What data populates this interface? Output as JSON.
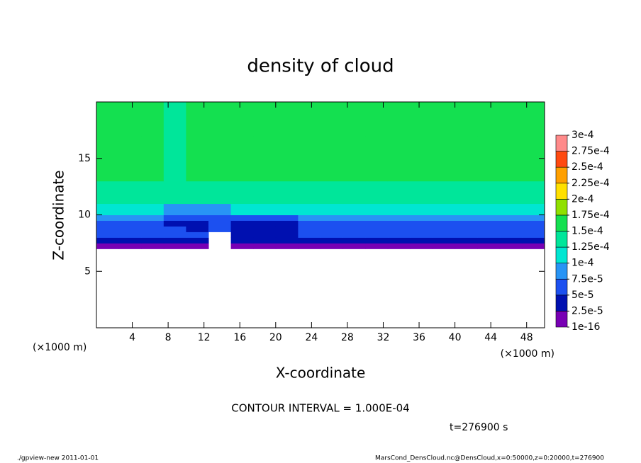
{
  "chart_data": {
    "type": "heatmap",
    "title": "density of cloud",
    "x_label": "X-coordinate",
    "y_label": "Z-coordinate",
    "x_unit_left": "(×1000 m)",
    "x_unit_right": "(×1000 m)",
    "xlim": [
      0,
      50
    ],
    "ylim": [
      0,
      20
    ],
    "xticks": [
      4,
      8,
      12,
      16,
      20,
      24,
      28,
      32,
      36,
      40,
      44,
      48
    ],
    "yticks": [
      5,
      10,
      15
    ],
    "x_edges": [
      0,
      2.5,
      5,
      7.5,
      10,
      12.5,
      15,
      17.5,
      20,
      22.5,
      25,
      27.5,
      30,
      32.5,
      35,
      37.5,
      40,
      42.5,
      45,
      47.5,
      50
    ],
    "z_edges": [
      7,
      7.5,
      8,
      8.5,
      9,
      9.5,
      10,
      11,
      13,
      15,
      17,
      20
    ],
    "grid": [
      [
        1e-05,
        1e-05,
        1e-05,
        1e-05,
        1e-05,
        null,
        1e-05,
        1e-05,
        1e-05,
        1e-05,
        1e-05,
        1e-05,
        1e-05,
        1e-05,
        1e-05,
        1e-05,
        1e-05,
        1e-05,
        1e-05,
        1e-05
      ],
      [
        4e-05,
        4e-05,
        4e-05,
        4e-05,
        4e-05,
        null,
        3e-05,
        3e-05,
        3e-05,
        4e-05,
        4e-05,
        4e-05,
        4e-05,
        4e-05,
        4e-05,
        4e-05,
        4e-05,
        4e-05,
        4e-05,
        4e-05
      ],
      [
        6e-05,
        6e-05,
        6e-05,
        6e-05,
        6e-05,
        null,
        3e-05,
        3e-05,
        3e-05,
        6e-05,
        6e-05,
        6e-05,
        6e-05,
        6e-05,
        6e-05,
        6e-05,
        6e-05,
        6e-05,
        6e-05,
        6e-05
      ],
      [
        6.5e-05,
        6.5e-05,
        6.5e-05,
        6.5e-05,
        3e-05,
        7e-05,
        4e-05,
        4e-05,
        4e-05,
        6.5e-05,
        6.5e-05,
        6.5e-05,
        6.5e-05,
        6.5e-05,
        6.5e-05,
        6.5e-05,
        6.5e-05,
        6.5e-05,
        6.5e-05,
        6.5e-05
      ],
      [
        7e-05,
        7e-05,
        7e-05,
        4e-05,
        4e-05,
        7e-05,
        4e-05,
        4e-05,
        4e-05,
        7e-05,
        7e-05,
        7e-05,
        7e-05,
        7e-05,
        7e-05,
        7e-05,
        7e-05,
        7e-05,
        7e-05,
        7e-05
      ],
      [
        8.5e-05,
        8.5e-05,
        8.5e-05,
        6e-05,
        6e-05,
        6e-05,
        6e-05,
        6e-05,
        6e-05,
        8.5e-05,
        8.5e-05,
        8.5e-05,
        8.5e-05,
        8.5e-05,
        8.5e-05,
        8.5e-05,
        8.5e-05,
        8.5e-05,
        8.5e-05,
        8.5e-05
      ],
      [
        0.00012,
        0.00012,
        0.00012,
        9e-05,
        9e-05,
        9e-05,
        0.00012,
        0.00012,
        0.00012,
        0.00012,
        0.00012,
        0.00012,
        0.00012,
        0.00012,
        0.00012,
        0.00012,
        0.00012,
        0.00012,
        0.00012,
        0.00012
      ],
      [
        0.00014,
        0.00014,
        0.00014,
        0.00013,
        0.00014,
        0.00014,
        0.00014,
        0.00014,
        0.00014,
        0.00014,
        0.00014,
        0.00014,
        0.00014,
        0.00014,
        0.00014,
        0.00014,
        0.00014,
        0.00014,
        0.00014,
        0.00014
      ],
      [
        0.000155,
        0.000155,
        0.000155,
        0.00013,
        0.000155,
        0.000155,
        0.000155,
        0.000155,
        0.000155,
        0.000155,
        0.000155,
        0.000155,
        0.000155,
        0.000155,
        0.000155,
        0.000155,
        0.000155,
        0.000155,
        0.000155,
        0.000155
      ],
      [
        0.000155,
        0.000155,
        0.000155,
        0.00013,
        0.000155,
        0.000155,
        0.000155,
        0.000155,
        0.000155,
        0.000155,
        0.000155,
        0.000155,
        0.000155,
        0.000155,
        0.000155,
        0.000155,
        0.000155,
        0.000155,
        0.000155,
        0.000155
      ],
      [
        0.000155,
        0.000155,
        0.000155,
        0.00013,
        0.000155,
        0.000155,
        0.000155,
        0.000155,
        0.000155,
        0.000155,
        0.000155,
        0.000155,
        0.000155,
        0.000155,
        0.000155,
        0.000155,
        0.000155,
        0.000155,
        0.000155,
        0.000155
      ]
    ],
    "levels": [
      {
        "value": 1e-16,
        "label": "1e-16"
      },
      {
        "value": 2.5e-05,
        "label": "2.5e-5"
      },
      {
        "value": 5e-05,
        "label": "5e-5"
      },
      {
        "value": 7.5e-05,
        "label": "7.5e-5"
      },
      {
        "value": 0.0001,
        "label": "1e-4"
      },
      {
        "value": 0.000125,
        "label": "1.25e-4"
      },
      {
        "value": 0.00015,
        "label": "1.5e-4"
      },
      {
        "value": 0.000175,
        "label": "1.75e-4"
      },
      {
        "value": 0.0002,
        "label": "2e-4"
      },
      {
        "value": 0.000225,
        "label": "2.25e-4"
      },
      {
        "value": 0.00025,
        "label": "2.5e-4"
      },
      {
        "value": 0.000275,
        "label": "2.75e-4"
      },
      {
        "value": 0.0003,
        "label": "3e-4"
      }
    ],
    "colors": [
      "#7800b4",
      "#0010b0",
      "#1c50f0",
      "#2894f5",
      "#00e6d2",
      "#00e69a",
      "#14e050",
      "#90e000",
      "#ffe000",
      "#ffa000",
      "#ff4a10",
      "#ff8a8a"
    ],
    "contour_note": "CONTOUR INTERVAL = 1.000E-04",
    "time_note": "t=276900 s",
    "footer_left": "./gpview-new   2011-01-01",
    "footer_right": "MarsCond_DensCloud.nc@DensCloud,x=0:50000,z=0:20000,t=276900"
  }
}
